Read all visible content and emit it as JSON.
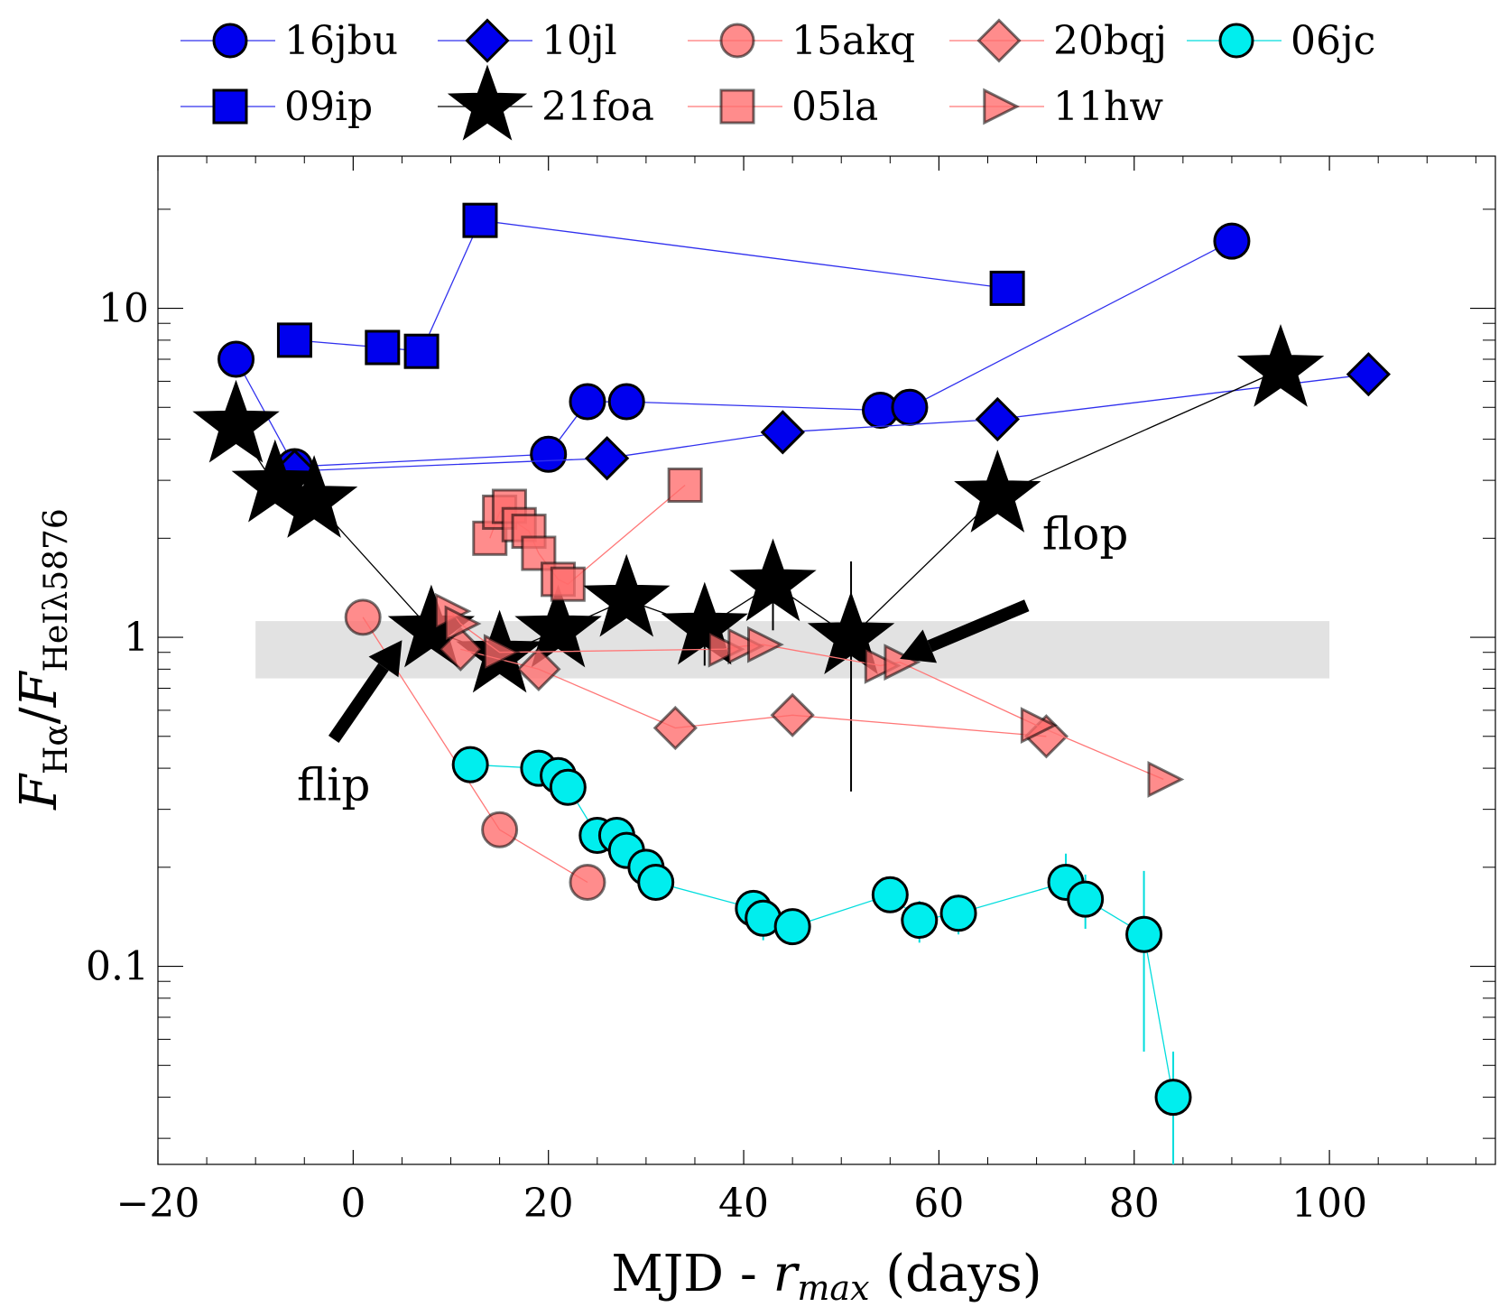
{
  "chart_data": {
    "type": "scatter",
    "title": "",
    "xlabel": "MJD - r_max (days)",
    "ylabel": "F_Hα / F_HeIλ5876",
    "xlim": [
      -20,
      117
    ],
    "ylim": [
      0.025,
      29
    ],
    "yscale": "log",
    "x_ticks": [
      -20,
      0,
      20,
      40,
      60,
      80,
      100
    ],
    "x_tick_labels": [
      "−20",
      "0",
      "20",
      "40",
      "60",
      "80",
      "100"
    ],
    "y_ticks": [
      0.1,
      1,
      10
    ],
    "y_tick_labels": [
      "0.1",
      "1",
      "10"
    ],
    "legend_position": "top",
    "colors": {
      "blue": "#0000ee",
      "black": "#000000",
      "red": "#ff6b6b",
      "cyan": "#00eeee",
      "band": "#e2e2e2"
    },
    "band": {
      "x": [
        -10,
        100
      ],
      "y": [
        0.75,
        1.12
      ]
    },
    "series": [
      {
        "name": "16jbu",
        "marker": "circle",
        "color": "#0000ee",
        "line": "#3030ee",
        "x": [
          -12,
          -6,
          20,
          24,
          28,
          54,
          57,
          90
        ],
        "y": [
          7.0,
          3.3,
          3.6,
          5.2,
          5.2,
          4.9,
          5.0,
          16
        ]
      },
      {
        "name": "09ip",
        "marker": "square",
        "color": "#0000ee",
        "line": "#3030ee",
        "x": [
          -6,
          3,
          7,
          13,
          67
        ],
        "y": [
          8.0,
          7.6,
          7.4,
          18.5,
          11.5
        ]
      },
      {
        "name": "10jl",
        "marker": "diamond",
        "color": "#0000ee",
        "line": "#3030ee",
        "x": [
          -6,
          26,
          44,
          66,
          104
        ],
        "y": [
          3.2,
          3.5,
          4.2,
          4.6,
          6.3
        ]
      },
      {
        "name": "21foa",
        "marker": "star",
        "color": "#000000",
        "line": "#000000",
        "x": [
          -12,
          -8,
          -4,
          8,
          15,
          21,
          28,
          36,
          43,
          51,
          66,
          95
        ],
        "y": [
          4.4,
          2.9,
          2.6,
          1.05,
          0.88,
          1.05,
          1.3,
          1.07,
          1.45,
          1.0,
          2.7,
          6.5
        ],
        "yerr_low": [
          0,
          0,
          0,
          0,
          0,
          0,
          0,
          0.25,
          0.4,
          0.66,
          0,
          0
        ],
        "yerr_high": [
          0,
          0,
          0,
          0,
          0,
          0,
          0,
          0,
          0,
          0.7,
          0,
          0
        ]
      },
      {
        "name": "15akq",
        "marker": "circle",
        "color": "#ff6b6b",
        "line": "#ff7777",
        "x": [
          1,
          15,
          24
        ],
        "y": [
          1.15,
          0.26,
          0.18
        ]
      },
      {
        "name": "05la",
        "marker": "square",
        "color": "#ff6b6b",
        "line": "#ff7777",
        "x": [
          14,
          15,
          16,
          17,
          18,
          19,
          21,
          22,
          34
        ],
        "y": [
          2.0,
          2.4,
          2.5,
          2.2,
          2.1,
          1.8,
          1.5,
          1.45,
          2.9
        ]
      },
      {
        "name": "20bqj",
        "marker": "diamond",
        "color": "#ff6b6b",
        "line": "#ff7777",
        "x": [
          11,
          19,
          33,
          45,
          71
        ],
        "y": [
          0.92,
          0.8,
          0.53,
          0.58,
          0.5
        ]
      },
      {
        "name": "11hw",
        "marker": "triangle-right",
        "color": "#ff6b6b",
        "line": "#ff7777",
        "x": [
          10,
          11,
          15,
          38,
          40,
          42,
          54,
          56,
          70,
          83
        ],
        "y": [
          1.2,
          1.1,
          0.9,
          0.92,
          0.94,
          0.95,
          0.82,
          0.84,
          0.54,
          0.37
        ]
      },
      {
        "name": "06jc",
        "marker": "circle",
        "color": "#00eeee",
        "line": "#00dddd",
        "x": [
          12,
          19,
          21,
          22,
          25,
          27,
          28,
          30,
          31,
          41,
          42,
          45,
          55,
          58,
          62,
          73,
          75,
          81,
          84
        ],
        "y": [
          0.41,
          0.4,
          0.38,
          0.35,
          0.25,
          0.25,
          0.225,
          0.2,
          0.18,
          0.15,
          0.14,
          0.132,
          0.165,
          0.138,
          0.145,
          0.18,
          0.16,
          0.125,
          0.04
        ],
        "yerr_low": [
          0,
          0,
          0,
          0,
          0,
          0,
          0,
          0,
          0,
          0,
          0.02,
          0,
          0,
          0.02,
          0.02,
          0.02,
          0.03,
          0.07,
          0.015
        ],
        "yerr_high": [
          0,
          0,
          0,
          0,
          0,
          0,
          0,
          0,
          0,
          0,
          0,
          0,
          0,
          0.02,
          0.02,
          0.04,
          0.03,
          0.07,
          0.015
        ]
      }
    ],
    "annotations": [
      {
        "text": "flip",
        "label_at": [
          -2,
          0.32
        ],
        "arrow_from": [
          -2,
          0.49
        ],
        "arrow_to": [
          5,
          0.98
        ]
      },
      {
        "text": "flop",
        "label_at": [
          75,
          1.85
        ],
        "arrow_from": [
          69,
          1.25
        ],
        "arrow_to": [
          56,
          0.86
        ]
      }
    ]
  }
}
